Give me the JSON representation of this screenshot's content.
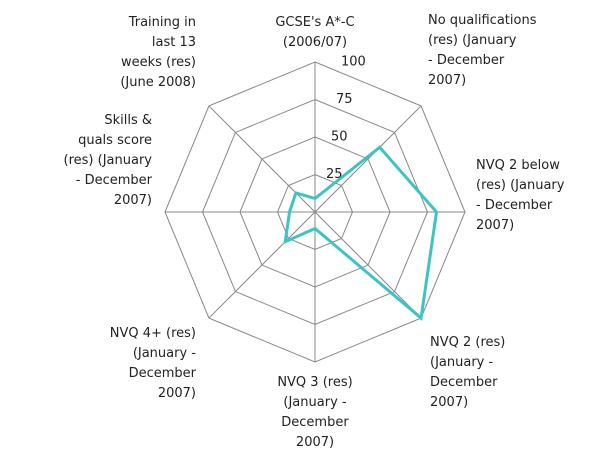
{
  "chart_data": {
    "type": "radar",
    "categories": [
      "GCSE's A*-C\n(2006/07)",
      "No qualifications\n(res) (January\n- December\n2007)",
      "NVQ 2 below\n(res) (January\n- December\n2007)",
      "NVQ 2 (res)\n(January -\nDecember\n2007)",
      "NVQ 3 (res)\n(January -\nDecember\n2007)",
      "NVQ 4+ (res)\n(January -\nDecember\n2007)",
      "Skills &\nquals score\n(res) (January\n- December\n2007)",
      "Training in\nlast 13\nweeks (res)\n(June 2008)"
    ],
    "values": [
      9,
      61,
      81,
      100,
      11,
      28,
      17,
      18
    ],
    "color": "#3cc4c4",
    "rlim": [
      0,
      100
    ],
    "rticks": [
      25,
      50,
      75,
      100
    ],
    "grid": true
  }
}
